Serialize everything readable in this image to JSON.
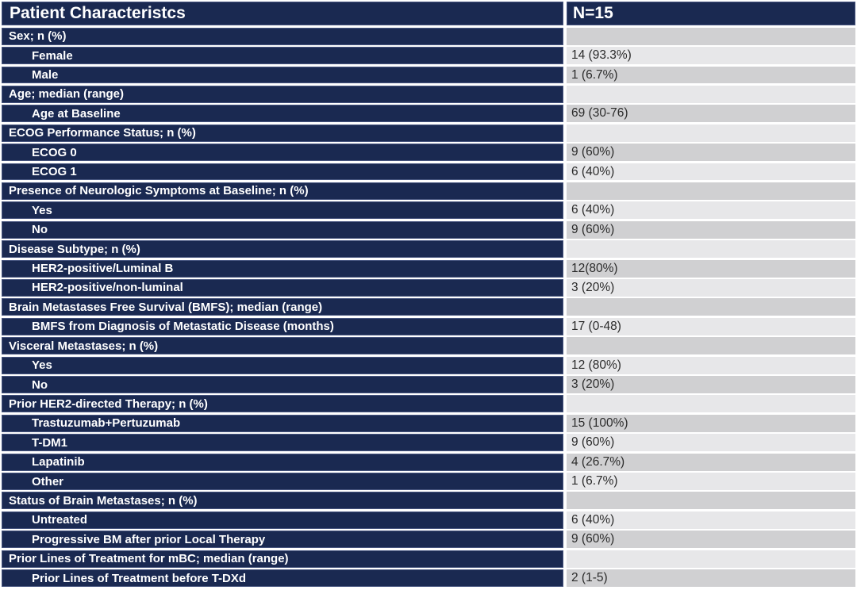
{
  "colors": {
    "header_navy": "#1a2951",
    "navy_border": "#47557f",
    "row_gray_dark": "#d0d0d2",
    "row_gray_light": "#e7e7e9",
    "value_text": "#2b2b2b"
  },
  "table": {
    "title": "Patient Characteristcs",
    "n_header": "N=15",
    "rows": [
      {
        "type": "section",
        "label": "Sex; n (%)",
        "value": ""
      },
      {
        "type": "item",
        "label": "Female",
        "value": "14 (93.3%)"
      },
      {
        "type": "item",
        "label": "Male",
        "value": "1 (6.7%)"
      },
      {
        "type": "section",
        "label": "Age; median (range)",
        "value": ""
      },
      {
        "type": "item",
        "label": "Age at Baseline",
        "value": "69 (30-76)"
      },
      {
        "type": "section",
        "label": "ECOG Performance Status; n (%)",
        "value": ""
      },
      {
        "type": "item",
        "label": "ECOG 0",
        "value": "9 (60%)"
      },
      {
        "type": "item",
        "label": "ECOG 1",
        "value": "6 (40%)"
      },
      {
        "type": "section",
        "label": "Presence of Neurologic Symptoms at Baseline; n (%)",
        "value": ""
      },
      {
        "type": "item",
        "label": "Yes",
        "value": "6 (40%)"
      },
      {
        "type": "item",
        "label": "No",
        "value": "9 (60%)"
      },
      {
        "type": "section",
        "label": "Disease Subtype; n (%)",
        "value": ""
      },
      {
        "type": "item",
        "label": "HER2-positive/Luminal B",
        "value": "12(80%)"
      },
      {
        "type": "item",
        "label": "HER2-positive/non-luminal",
        "value": "3 (20%)"
      },
      {
        "type": "section",
        "label": "Brain Metastases Free Survival (BMFS); median (range)",
        "value": ""
      },
      {
        "type": "item",
        "label": "BMFS from Diagnosis of Metastatic Disease (months)",
        "value": "17 (0-48)"
      },
      {
        "type": "section",
        "label": "Visceral Metastases; n (%)",
        "value": ""
      },
      {
        "type": "item",
        "label": "Yes",
        "value": "12 (80%)"
      },
      {
        "type": "item",
        "label": "No",
        "value": "3 (20%)"
      },
      {
        "type": "section",
        "label": "Prior HER2-directed Therapy; n (%)",
        "value": ""
      },
      {
        "type": "item",
        "label": "Trastuzumab+Pertuzumab",
        "value": "15 (100%)"
      },
      {
        "type": "item",
        "label": "T-DM1",
        "value": "9 (60%)"
      },
      {
        "type": "item",
        "label": "Lapatinib",
        "value": "4 (26.7%)"
      },
      {
        "type": "item",
        "label": "Other",
        "value": "1 (6.7%)"
      },
      {
        "type": "section",
        "label": "Status of Brain Metastases; n (%)",
        "value": ""
      },
      {
        "type": "item",
        "label": "Untreated",
        "value": "6 (40%)"
      },
      {
        "type": "item",
        "label": "Progressive BM after prior Local Therapy",
        "value": "9 (60%)"
      },
      {
        "type": "section",
        "label": "Prior Lines of Treatment for mBC; median (range)",
        "value": ""
      },
      {
        "type": "item",
        "label": "Prior Lines of Treatment before T-DXd",
        "value": "2 (1-5)"
      }
    ]
  },
  "chart_data": {
    "type": "table",
    "title": "Patient Characteristcs",
    "columns": [
      "Patient Characteristcs",
      "N=15"
    ],
    "rows": [
      [
        "Sex; n (%)",
        ""
      ],
      [
        "Female",
        "14 (93.3%)"
      ],
      [
        "Male",
        "1 (6.7%)"
      ],
      [
        "Age; median (range)",
        ""
      ],
      [
        "Age at Baseline",
        "69 (30-76)"
      ],
      [
        "ECOG Performance Status; n (%)",
        ""
      ],
      [
        "ECOG 0",
        "9 (60%)"
      ],
      [
        "ECOG 1",
        "6 (40%)"
      ],
      [
        "Presence of Neurologic Symptoms at Baseline; n (%)",
        ""
      ],
      [
        "Yes",
        "6 (40%)"
      ],
      [
        "No",
        "9 (60%)"
      ],
      [
        "Disease Subtype; n (%)",
        ""
      ],
      [
        "HER2-positive/Luminal B",
        "12(80%)"
      ],
      [
        "HER2-positive/non-luminal",
        "3 (20%)"
      ],
      [
        "Brain Metastases Free Survival (BMFS); median (range)",
        ""
      ],
      [
        "BMFS from Diagnosis of Metastatic Disease (months)",
        "17 (0-48)"
      ],
      [
        "Visceral Metastases; n (%)",
        ""
      ],
      [
        "Yes",
        "12 (80%)"
      ],
      [
        "No",
        "3 (20%)"
      ],
      [
        "Prior HER2-directed Therapy; n (%)",
        ""
      ],
      [
        "Trastuzumab+Pertuzumab",
        "15 (100%)"
      ],
      [
        "T-DM1",
        "9 (60%)"
      ],
      [
        "Lapatinib",
        "4 (26.7%)"
      ],
      [
        "Other",
        "1 (6.7%)"
      ],
      [
        "Status of Brain Metastases; n (%)",
        ""
      ],
      [
        "Untreated",
        "6 (40%)"
      ],
      [
        "Progressive BM after prior Local Therapy",
        "9 (60%)"
      ],
      [
        "Prior Lines of Treatment for mBC; median (range)",
        ""
      ],
      [
        "Prior Lines of Treatment before T-DXd",
        "2 (1-5)"
      ]
    ]
  }
}
